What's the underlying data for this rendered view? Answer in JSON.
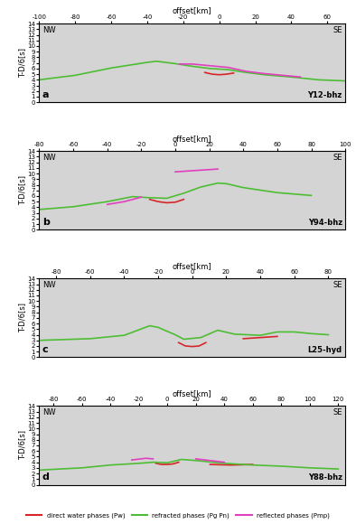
{
  "chart_data": [
    {
      "type": "line",
      "x_label": "offset[km]",
      "y_label": "T-D/6[s]",
      "annotations": [
        "NW",
        "SE"
      ],
      "panel": "a",
      "station": "Y12-bhz",
      "xlim": [
        -100,
        70
      ],
      "ylim": [
        0,
        14
      ],
      "xticks": [
        -100,
        -80,
        -60,
        -40,
        -20,
        0,
        20,
        40,
        60
      ],
      "yticks": [
        0,
        1,
        2,
        3,
        4,
        5,
        6,
        7,
        8,
        9,
        10,
        11,
        12,
        13,
        14
      ],
      "series": [
        {
          "name": "direct water phases (Pw)",
          "color": "#d62728",
          "x": [
            -8,
            -4,
            0,
            4,
            8
          ],
          "values": [
            5.3,
            5.0,
            4.9,
            5.0,
            5.2
          ]
        },
        {
          "name": "refracted phases (Pg Pn)",
          "color": "#4dbd33",
          "x": [
            -100,
            -80,
            -60,
            -40,
            -35,
            -25,
            -15,
            -5,
            5,
            15,
            25,
            40,
            55,
            70
          ],
          "values": [
            4.0,
            4.8,
            6.1,
            7.1,
            7.3,
            6.9,
            6.4,
            6.0,
            5.8,
            5.3,
            4.9,
            4.5,
            4.0,
            3.8
          ]
        },
        {
          "name": "reflected phases (Pmp)",
          "color": "#e040c0",
          "x": [
            -22,
            -15,
            -5,
            5,
            15,
            25,
            35,
            45
          ],
          "values": [
            6.8,
            6.8,
            6.5,
            6.2,
            5.5,
            5.1,
            4.8,
            4.5
          ]
        }
      ]
    },
    {
      "type": "line",
      "x_label": "offset[km]",
      "y_label": "T-D/6[s]",
      "annotations": [
        "NW",
        "SE"
      ],
      "panel": "b",
      "station": "Y94-bhz",
      "xlim": [
        -80,
        100
      ],
      "ylim": [
        0,
        14
      ],
      "xticks": [
        -80,
        -60,
        -40,
        -20,
        0,
        20,
        40,
        60,
        80,
        100
      ],
      "yticks": [
        0,
        1,
        2,
        3,
        4,
        5,
        6,
        7,
        8,
        9,
        10,
        11,
        12,
        13,
        14
      ],
      "series": [
        {
          "name": "direct water phases (Pw)",
          "color": "#d62728",
          "x": [
            -15,
            -10,
            -5,
            0,
            5
          ],
          "values": [
            5.4,
            5.0,
            4.8,
            4.9,
            5.4
          ]
        },
        {
          "name": "refracted phases (Pg Pn)",
          "color": "#4dbd33",
          "x": [
            -80,
            -60,
            -40,
            -25,
            -15,
            -5,
            5,
            15,
            25,
            30,
            40,
            60,
            80
          ],
          "values": [
            3.6,
            4.1,
            5.0,
            5.9,
            5.7,
            5.6,
            6.5,
            7.6,
            8.3,
            8.2,
            7.5,
            6.6,
            6.1
          ]
        },
        {
          "name": "reflected phases (Pmp)",
          "color": "#e040c0",
          "x": [
            -40,
            -30,
            -20,
            -10,
            0,
            10,
            20,
            25
          ],
          "values": [
            4.5,
            5.0,
            5.8,
            null,
            10.3,
            10.5,
            10.7,
            10.8
          ]
        }
      ]
    },
    {
      "type": "line",
      "x_label": "offset[km]",
      "y_label": "T-D/6[s]",
      "annotations": [
        "NW",
        "SE"
      ],
      "panel": "c",
      "station": "L25-hyd",
      "xlim": [
        -90,
        90
      ],
      "ylim": [
        0,
        14
      ],
      "xticks": [
        -80,
        -60,
        -40,
        -20,
        0,
        20,
        40,
        60,
        80
      ],
      "yticks": [
        0,
        1,
        2,
        3,
        4,
        5,
        6,
        7,
        8,
        9,
        10,
        11,
        12,
        13,
        14
      ],
      "series": [
        {
          "name": "direct water phases (Pw)",
          "color": "#d62728",
          "x": [
            -8,
            -4,
            0,
            4,
            8,
            20,
            30,
            40,
            50
          ],
          "values": [
            2.6,
            2.0,
            1.9,
            2.0,
            2.6,
            null,
            3.3,
            3.5,
            3.7
          ]
        },
        {
          "name": "refracted phases (Pg Pn)",
          "color": "#4dbd33",
          "x": [
            -90,
            -60,
            -40,
            -25,
            -20,
            -10,
            -5,
            5,
            15,
            25,
            40,
            50,
            60,
            70,
            80
          ],
          "values": [
            3.0,
            3.3,
            3.9,
            5.6,
            5.3,
            4.0,
            3.2,
            3.5,
            4.8,
            4.1,
            3.9,
            4.5,
            4.5,
            4.2,
            4.0
          ]
        }
      ]
    },
    {
      "type": "line",
      "x_label": "offset[km]",
      "y_label": "T-D/6[s]",
      "annotations": [
        "NW",
        "SE"
      ],
      "panel": "d",
      "station": "Y88-bhz",
      "xlim": [
        -90,
        125
      ],
      "ylim": [
        0,
        14
      ],
      "xticks": [
        -80,
        -60,
        -40,
        -20,
        0,
        20,
        40,
        60,
        80,
        100,
        120
      ],
      "yticks": [
        0,
        1,
        2,
        3,
        4,
        5,
        6,
        7,
        8,
        9,
        10,
        11,
        12,
        13,
        14
      ],
      "legend": "lower center",
      "series": [
        {
          "name": "direct water phases (Pw)",
          "color": "#d62728",
          "x": [
            -8,
            -4,
            0,
            4,
            8,
            20,
            30,
            45,
            60
          ],
          "values": [
            3.8,
            3.6,
            3.6,
            3.7,
            4.0,
            null,
            3.6,
            3.5,
            3.6
          ]
        },
        {
          "name": "refracted phases (Pg Pn)",
          "color": "#4dbd33",
          "x": [
            -90,
            -60,
            -40,
            -20,
            -10,
            0,
            10,
            20,
            40,
            60,
            80,
            100,
            120
          ],
          "values": [
            2.6,
            3.0,
            3.5,
            3.8,
            4.0,
            3.9,
            4.5,
            4.3,
            3.8,
            3.5,
            3.3,
            3.0,
            2.8
          ]
        },
        {
          "name": "reflected phases (Pmp)",
          "color": "#e040c0",
          "x": [
            -25,
            -15,
            -10,
            0,
            20,
            30,
            40
          ],
          "values": [
            4.4,
            4.7,
            4.6,
            null,
            4.6,
            4.3,
            4.0
          ]
        }
      ]
    }
  ]
}
